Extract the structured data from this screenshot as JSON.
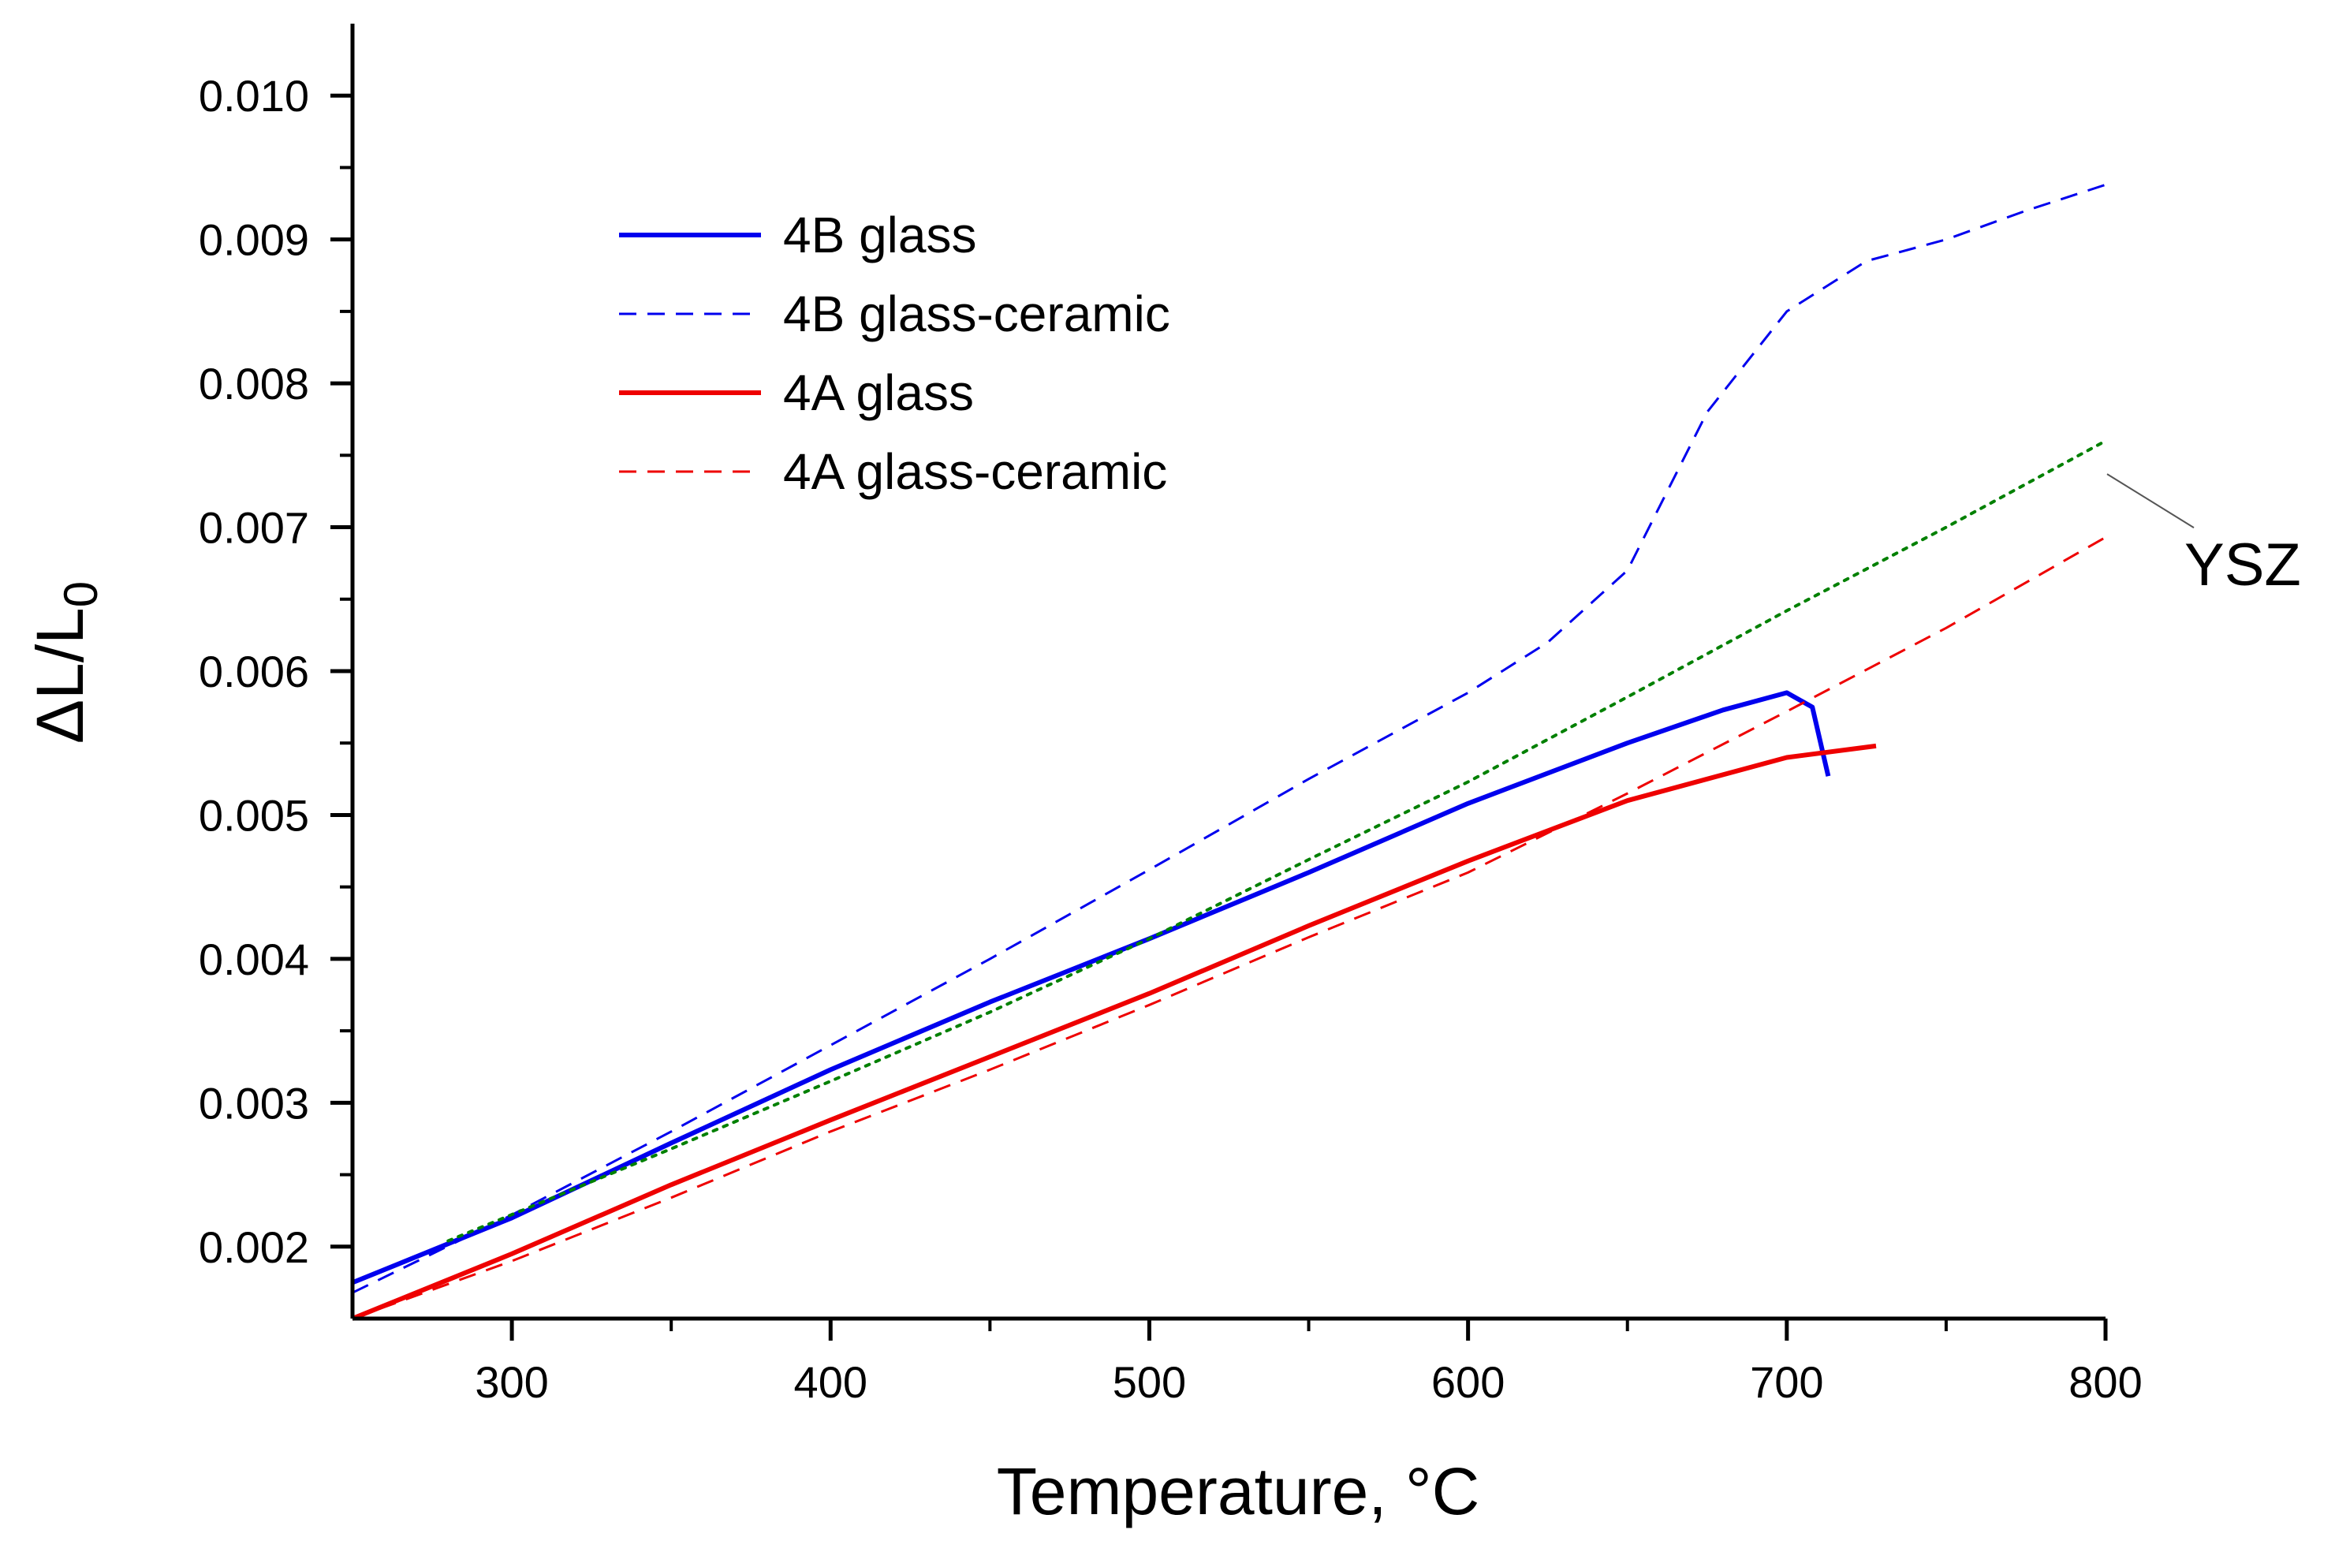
{
  "chart_data": {
    "type": "line",
    "title": "",
    "xlabel": "Temperature, °C",
    "ylabel_parts": {
      "main": "ΔL/L",
      "sub": "0"
    },
    "xlim": [
      250,
      800
    ],
    "ylim": [
      0.0015,
      0.0105
    ],
    "x_ticks": [
      300,
      400,
      500,
      600,
      700,
      800
    ],
    "x_tick_labels": [
      "300",
      "400",
      "500",
      "600",
      "700",
      "800"
    ],
    "y_ticks": [
      0.002,
      0.003,
      0.004,
      0.005,
      0.006,
      0.007,
      0.008,
      0.009,
      0.01
    ],
    "y_tick_labels": [
      "0.002",
      "0.003",
      "0.004",
      "0.005",
      "0.006",
      "0.007",
      "0.008",
      "0.009",
      "0.010"
    ],
    "grid": false,
    "legend_position": "upper-left",
    "series": [
      {
        "name": "4B glass",
        "color": "#0000ee",
        "style": "solid",
        "x": [
          250,
          300,
          350,
          400,
          450,
          500,
          550,
          600,
          650,
          680,
          700,
          708,
          713
        ],
        "y": [
          0.00175,
          0.0022,
          0.00272,
          0.00323,
          0.0037,
          0.00414,
          0.0046,
          0.00508,
          0.0055,
          0.00573,
          0.00585,
          0.00575,
          0.00527
        ]
      },
      {
        "name": "4B glass-ceramic",
        "color": "#0000ee",
        "style": "dashed",
        "x": [
          250,
          300,
          350,
          400,
          450,
          500,
          550,
          600,
          625,
          650,
          675,
          700,
          725,
          750,
          775,
          800
        ],
        "y": [
          0.00168,
          0.00222,
          0.0028,
          0.0034,
          0.004,
          0.00462,
          0.00525,
          0.00585,
          0.0062,
          0.0067,
          0.0078,
          0.0085,
          0.00885,
          0.009,
          0.0092,
          0.00938
        ]
      },
      {
        "name": "4A glass",
        "color": "#ee0000",
        "style": "solid",
        "x": [
          250,
          300,
          350,
          400,
          450,
          500,
          550,
          600,
          650,
          700,
          728
        ],
        "y": [
          0.0015,
          0.00195,
          0.00243,
          0.00288,
          0.00332,
          0.00376,
          0.00423,
          0.00468,
          0.0051,
          0.0054,
          0.00548
        ]
      },
      {
        "name": "4A glass-ceramic",
        "color": "#ee0000",
        "style": "dashed",
        "x": [
          250,
          300,
          350,
          400,
          450,
          500,
          550,
          600,
          650,
          700,
          750,
          800
        ],
        "y": [
          0.0015,
          0.0019,
          0.00234,
          0.0028,
          0.00323,
          0.00368,
          0.00415,
          0.0046,
          0.00515,
          0.00572,
          0.0063,
          0.00693
        ]
      },
      {
        "name": "YSZ",
        "color": "#008000",
        "style": "dotted",
        "x": [
          280,
          350,
          400,
          450,
          500,
          550,
          600,
          650,
          700,
          750,
          800
        ],
        "y": [
          0.00204,
          0.00268,
          0.00315,
          0.00363,
          0.00414,
          0.00469,
          0.00523,
          0.00582,
          0.00642,
          0.007,
          0.0076
        ]
      }
    ],
    "legend": [
      "4B glass",
      "4B glass-ceramic",
      "4A glass",
      "4A glass-ceramic"
    ],
    "annotations": [
      {
        "text": "YSZ",
        "points_to_series": "YSZ"
      }
    ]
  }
}
